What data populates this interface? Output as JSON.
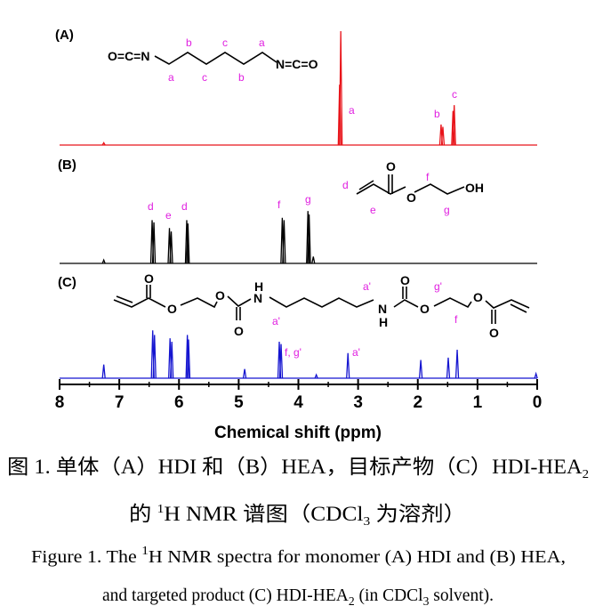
{
  "chart_data": {
    "type": "spectrum",
    "xlabel": "Chemical shift (ppm)",
    "xlim": [
      8,
      0
    ],
    "xticks": [
      8,
      7,
      6,
      5,
      4,
      3,
      2,
      1,
      0
    ],
    "minor_xticks": [
      7.5,
      6.5,
      5.5,
      4.5,
      3.5,
      2.5,
      1.5,
      0.5
    ],
    "series": [
      {
        "name": "(A)",
        "color": "#e8141a",
        "x": [
          7.26,
          3.31,
          3.29,
          1.61,
          1.58,
          1.41,
          1.39
        ],
        "values": [
          2,
          53,
          100,
          18,
          16,
          30,
          35
        ],
        "labels": [
          "a",
          "b",
          "c"
        ]
      },
      {
        "name": "(B)",
        "color": "#000000",
        "x": [
          7.26,
          6.45,
          6.42,
          6.16,
          6.13,
          5.87,
          5.85,
          4.27,
          4.24,
          3.84,
          3.82,
          3.75
        ],
        "values": [
          3,
          38,
          36,
          31,
          28,
          38,
          35,
          40,
          38,
          46,
          43,
          6
        ],
        "labels": [
          "d",
          "e",
          "d",
          "f",
          "g"
        ]
      },
      {
        "name": "(C)",
        "color": "#1515d0",
        "x": [
          7.26,
          6.44,
          6.41,
          6.15,
          6.12,
          5.86,
          5.84,
          4.9,
          4.32,
          4.29,
          3.7,
          3.17,
          1.95,
          1.49,
          1.34,
          0.02
        ],
        "values": [
          12,
          42,
          38,
          35,
          32,
          38,
          34,
          8,
          32,
          30,
          3,
          22,
          16,
          18,
          25,
          4
        ],
        "labels": [
          "f, g'",
          "a'"
        ]
      }
    ]
  },
  "structures": {
    "A": [
      "O=C=N",
      "N=C=O",
      "b",
      "c",
      "a",
      "a",
      "c",
      "b"
    ],
    "B": [
      "d",
      "e",
      "O",
      "O",
      "f",
      "g",
      "OH"
    ],
    "C": [
      "O",
      "O",
      "O",
      "O",
      "N",
      "H",
      "N",
      "H",
      "O",
      "O",
      "O",
      "O",
      "a'",
      "a'",
      "g'",
      "f"
    ]
  },
  "caption": {
    "lines": [
      {
        "parts": [
          "图 1. 单体（A）HDI 和（B）HEA，目标产物（C）HDI-HEA",
          "2"
        ],
        "styles": [
          "normal",
          "sub"
        ]
      },
      {
        "parts": [
          "的 ",
          "1",
          "H NMR 谱图（CDCl",
          "3",
          " 为溶剂）"
        ],
        "styles": [
          "normal",
          "sup",
          "normal",
          "sub",
          "normal"
        ]
      },
      {
        "parts": [
          "Figure 1. The ",
          "1",
          "H NMR spectra for monomer (A) HDI and (B) HEA,"
        ],
        "styles": [
          "normal",
          "sup",
          "normal"
        ]
      },
      {
        "parts": [
          "and targeted product (C) HDI-HEA",
          "2",
          " (in CDCl",
          "3",
          " solvent)."
        ],
        "styles": [
          "normal",
          "sub",
          "normal",
          "sub",
          "normal"
        ]
      }
    ]
  }
}
